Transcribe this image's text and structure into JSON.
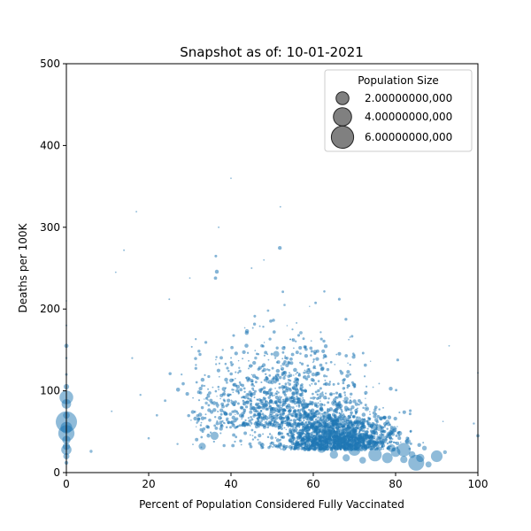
{
  "chart_data": {
    "type": "scatter",
    "title": "Snapshot as of: 10-01-2021",
    "xlabel": "Percent of Population Considered Fully Vaccinated",
    "ylabel": "Deaths per 100K",
    "xlim": [
      0,
      100
    ],
    "ylim": [
      0,
      500
    ],
    "xticks": [
      0,
      20,
      40,
      60,
      80,
      100
    ],
    "yticks": [
      0,
      100,
      200,
      300,
      400,
      500
    ],
    "point_color": "#1f77b4",
    "grid": false,
    "legend": {
      "title": "Population Size",
      "placement": "top-right",
      "entries": [
        {
          "label": "2.00000000,000",
          "population": 2000000
        },
        {
          "label": "4.00000000,000",
          "population": 4000000
        },
        {
          "label": "6.00000000,000",
          "population": 6000000
        }
      ],
      "marker_color": "#555555"
    },
    "points": [
      [
        0,
        210,
        30000
      ],
      [
        0,
        180,
        45000
      ],
      [
        0,
        155,
        250000
      ],
      [
        0,
        140,
        60000
      ],
      [
        0,
        120,
        90000
      ],
      [
        0,
        105,
        400000
      ],
      [
        0,
        92,
        2500000
      ],
      [
        0,
        84,
        1200000
      ],
      [
        0,
        70,
        600000
      ],
      [
        0,
        62,
        6000000
      ],
      [
        0,
        55,
        1800000
      ],
      [
        0,
        48,
        3500000
      ],
      [
        0,
        40,
        900000
      ],
      [
        0,
        32,
        700000
      ],
      [
        0,
        28,
        1400000
      ],
      [
        0,
        20,
        500000
      ],
      [
        0,
        12,
        200000
      ],
      [
        6,
        26,
        120000
      ],
      [
        11,
        75,
        40000
      ],
      [
        12,
        245,
        30000
      ],
      [
        14,
        272,
        40000
      ],
      [
        16,
        140,
        50000
      ],
      [
        17,
        319,
        25000
      ],
      [
        18,
        95,
        60000
      ],
      [
        20,
        42,
        70000
      ],
      [
        22,
        70,
        80000
      ],
      [
        24,
        88,
        90000
      ],
      [
        25,
        212,
        40000
      ],
      [
        27,
        35,
        60000
      ],
      [
        28,
        120,
        50000
      ],
      [
        30,
        238,
        30000
      ],
      [
        32,
        63,
        110000
      ],
      [
        33,
        32,
        700000
      ],
      [
        34,
        85,
        120000
      ],
      [
        36,
        45,
        900000
      ],
      [
        37,
        300,
        40000
      ],
      [
        38,
        150,
        60000
      ],
      [
        39,
        110,
        80000
      ],
      [
        40,
        360,
        20000
      ],
      [
        41,
        75,
        150000
      ],
      [
        42,
        128,
        60000
      ],
      [
        43,
        60,
        120000
      ],
      [
        44,
        95,
        200000
      ],
      [
        45,
        250,
        40000
      ],
      [
        46,
        140,
        120000
      ],
      [
        47,
        36,
        180000
      ],
      [
        48,
        260,
        30000
      ],
      [
        49,
        198,
        80000
      ],
      [
        50,
        110,
        150000
      ],
      [
        51,
        145,
        500000
      ],
      [
        52,
        325,
        30000
      ],
      [
        53,
        205,
        70000
      ],
      [
        53,
        88,
        200000
      ],
      [
        54,
        135,
        120000
      ],
      [
        55,
        50,
        250000
      ],
      [
        56,
        100,
        300000
      ],
      [
        57,
        171,
        150000
      ],
      [
        58,
        82,
        600000
      ],
      [
        58,
        70,
        400000
      ],
      [
        59,
        45,
        500000
      ],
      [
        60,
        120,
        200000
      ],
      [
        61,
        55,
        1800000
      ],
      [
        62,
        95,
        300000
      ],
      [
        62,
        30,
        1200000
      ],
      [
        63,
        70,
        800000
      ],
      [
        64,
        48,
        2200000
      ],
      [
        65,
        85,
        400000
      ],
      [
        65,
        22,
        900000
      ],
      [
        66,
        60,
        1500000
      ],
      [
        67,
        38,
        2600000
      ],
      [
        68,
        90,
        300000
      ],
      [
        68,
        18,
        700000
      ],
      [
        69,
        52,
        1100000
      ],
      [
        70,
        28,
        2000000
      ],
      [
        71,
        65,
        500000
      ],
      [
        72,
        42,
        1600000
      ],
      [
        72,
        15,
        600000
      ],
      [
        73,
        78,
        300000
      ],
      [
        74,
        34,
        1300000
      ],
      [
        75,
        22,
        2400000
      ],
      [
        76,
        55,
        600000
      ],
      [
        77,
        40,
        900000
      ],
      [
        78,
        18,
        1500000
      ],
      [
        78,
        62,
        250000
      ],
      [
        79,
        30,
        800000
      ],
      [
        80,
        25,
        1200000
      ],
      [
        81,
        48,
        300000
      ],
      [
        82,
        16,
        700000
      ],
      [
        82,
        28,
        2500000
      ],
      [
        83,
        38,
        400000
      ],
      [
        84,
        22,
        600000
      ],
      [
        85,
        12,
        3400000
      ],
      [
        86,
        18,
        900000
      ],
      [
        87,
        30,
        300000
      ],
      [
        88,
        10,
        500000
      ],
      [
        90,
        20,
        1800000
      ],
      [
        92,
        25,
        200000
      ],
      [
        93,
        155,
        20000
      ],
      [
        99,
        60,
        60000
      ],
      [
        100,
        45,
        150000
      ],
      [
        100,
        122,
        40000
      ]
    ]
  }
}
